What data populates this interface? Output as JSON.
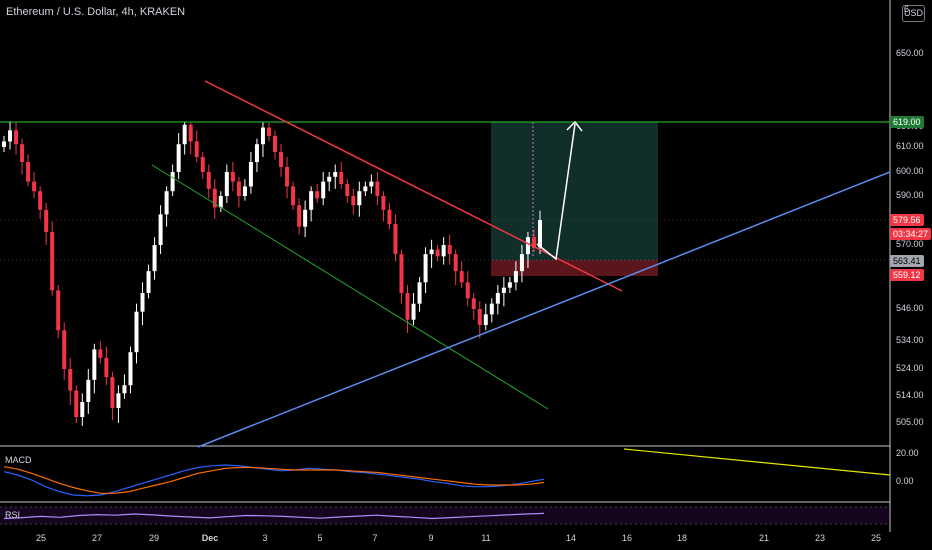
{
  "header": {
    "title": "Ethereum / U.S. Dollar, 4h, KRAKEN",
    "currency_button": "USD"
  },
  "panels": {
    "macd_label": "MACD",
    "rsi_label": "RSI"
  },
  "price_tags": [
    {
      "label": "619.00",
      "value": 619.0,
      "bg": "#1e7a34",
      "fg": "#ffffff"
    },
    {
      "label": "579.56",
      "value": 579.56,
      "bg": "#f23645",
      "fg": "#ffffff"
    },
    {
      "label": "03:34:27",
      "value": 574.0,
      "bg": "#f23645",
      "fg": "#ffffff"
    },
    {
      "label": "563.41",
      "value": 563.41,
      "bg": "#a3a6af",
      "fg": "#000000"
    },
    {
      "label": "559.12",
      "value": 559.12,
      "bg": "#f23645",
      "fg": "#ffffff"
    }
  ],
  "macd_axis_labels": [
    "20.00",
    "0.00"
  ],
  "chart_data": {
    "type": "candlestick",
    "title": "Ethereum / U.S. Dollar, 4h, KRAKEN",
    "y_ticks": [
      650,
      630,
      610,
      600,
      590,
      570,
      546,
      534,
      524,
      514,
      505
    ],
    "y_tick_labels": [
      "650.00",
      "630.00",
      "610.00",
      "600.00",
      "590.00",
      "570.00",
      "546.00",
      "534.00",
      "524.00",
      "514.00",
      "505.00"
    ],
    "top_partial_label": "6",
    "x_ticks": [
      "25",
      "27",
      "29",
      "Dec",
      "3",
      "5",
      "7",
      "9",
      "11",
      "14",
      "16",
      "18",
      "21",
      "23",
      "25"
    ],
    "colors": {
      "up": "#ffffff",
      "down": "#f23645",
      "resistance": "#f23645",
      "support": "#5b8def",
      "channel": "#22a92b",
      "level": "#22a92b"
    },
    "level_619": 619.0,
    "closes": [
      612,
      616,
      611,
      604,
      596,
      592,
      584,
      575,
      553,
      538,
      524,
      516,
      507,
      512,
      520,
      531,
      528,
      521,
      510,
      515,
      518,
      530,
      545,
      552,
      560,
      570,
      582,
      592,
      600,
      611,
      618,
      612,
      606,
      600,
      593,
      585,
      590,
      600,
      596,
      590,
      594,
      604,
      611,
      617,
      614,
      608,
      602,
      594,
      586,
      577,
      584,
      592,
      589,
      596,
      598,
      600,
      595,
      590,
      586,
      592,
      594,
      596,
      590,
      584,
      578,
      566,
      552,
      542,
      548,
      556,
      566,
      568,
      565,
      570,
      566,
      560,
      556,
      550,
      546,
      540,
      544,
      548,
      552,
      554,
      556,
      560,
      566,
      573,
      569,
      579.56
    ],
    "macd": {
      "macd_line": [
        8,
        4,
        -2,
        -10,
        -16,
        -20,
        -21,
        -20,
        -16,
        -11,
        -6,
        -1,
        4,
        9,
        13,
        15,
        16,
        15,
        13,
        11,
        9,
        10,
        12,
        11,
        10,
        8,
        7,
        5,
        3,
        1,
        -1,
        -4,
        -6,
        -9,
        -10,
        -10,
        -9,
        -7,
        -4,
        -1
      ],
      "signal_line": [
        14,
        11,
        6,
        0,
        -6,
        -11,
        -15,
        -18,
        -18,
        -16,
        -12,
        -8,
        -4,
        1,
        6,
        9,
        12,
        13,
        13,
        12,
        11,
        10,
        10,
        10,
        10,
        9,
        8,
        7,
        5,
        3,
        1,
        -1,
        -3,
        -5,
        -7,
        -8,
        -8,
        -8,
        -7,
        -5
      ],
      "y_range": [
        -26,
        34
      ]
    },
    "rsi": {
      "values": [
        45,
        48,
        52,
        49,
        55,
        58,
        56,
        60,
        57,
        53,
        50,
        47,
        51,
        55,
        54,
        52,
        49,
        46,
        50,
        53,
        56,
        52,
        49,
        45,
        48,
        51,
        54,
        57,
        60,
        62
      ]
    }
  }
}
